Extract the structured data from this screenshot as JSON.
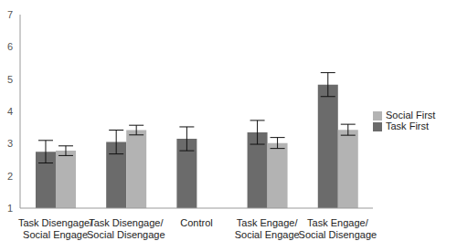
{
  "chart_data": {
    "type": "bar",
    "categories": [
      "Task Disengage/ Social Engage",
      "Task Disengage/ Social Disengage",
      "Control",
      "Task Engage/ Social Engage",
      "Task Engage/ Social Disengage"
    ],
    "series": [
      {
        "name": "Task First",
        "color": "#6b6b6b",
        "values": [
          2.75,
          3.05,
          3.15,
          3.35,
          4.83
        ],
        "errors": [
          0.35,
          0.37,
          0.37,
          0.37,
          0.37
        ]
      },
      {
        "name": "Social First",
        "color": "#b3b3b3",
        "values": [
          2.78,
          3.42,
          null,
          3.02,
          3.43
        ],
        "errors": [
          0.15,
          0.15,
          null,
          0.17,
          0.17
        ]
      }
    ],
    "ylim": [
      1,
      7
    ],
    "yticks": [
      1,
      2,
      3,
      4,
      5,
      6,
      7
    ],
    "grid": false,
    "legend": "right"
  }
}
